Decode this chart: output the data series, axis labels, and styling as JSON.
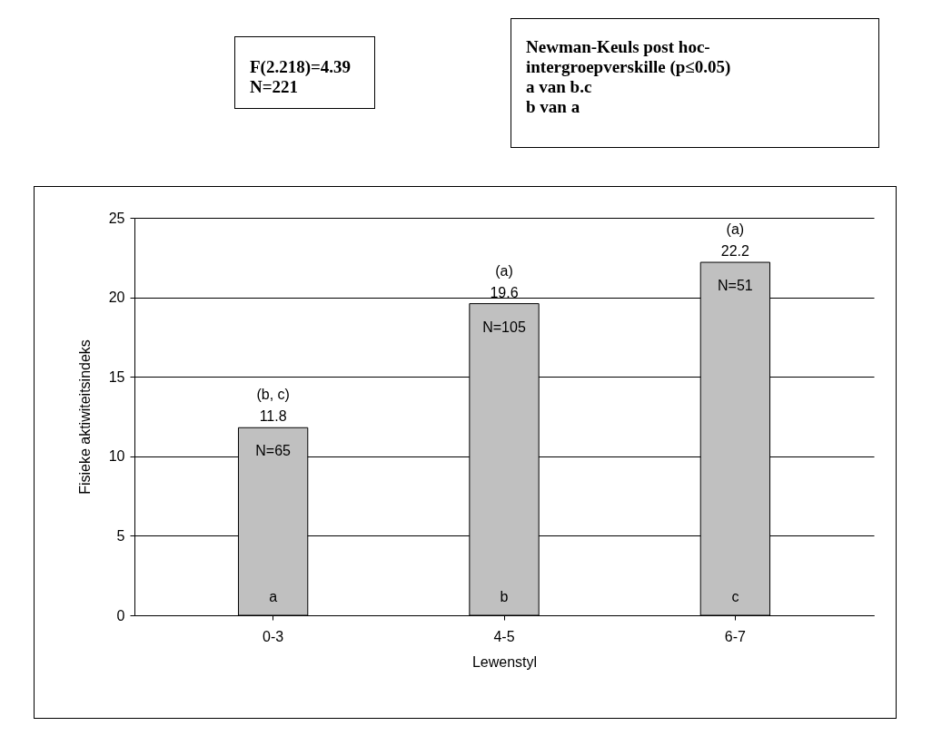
{
  "chart_data": {
    "type": "bar",
    "categories": [
      "0-3",
      "4-5",
      "6-7"
    ],
    "values": [
      11.8,
      19.6,
      22.2
    ],
    "color": "#c0c0c0",
    "xlabel": "Lewenstyl",
    "ylabel": "Fisieke aktiwiteitsindeks",
    "ylim": [
      0,
      25
    ],
    "yticks": [
      0,
      5,
      10,
      15,
      20,
      25
    ],
    "grid": "y",
    "data_labels": true,
    "annotations": [
      "(b, c)",
      "(a)",
      "(a)",
      "N=65",
      "N=105",
      "N=51",
      "a",
      "b",
      "c",
      "F(2.218)=4.39\nN=221",
      "Newman-Keuls post hoc-\nintergroepverskille (p≤0.05)\na van b.c\nb van a"
    ]
  }
}
